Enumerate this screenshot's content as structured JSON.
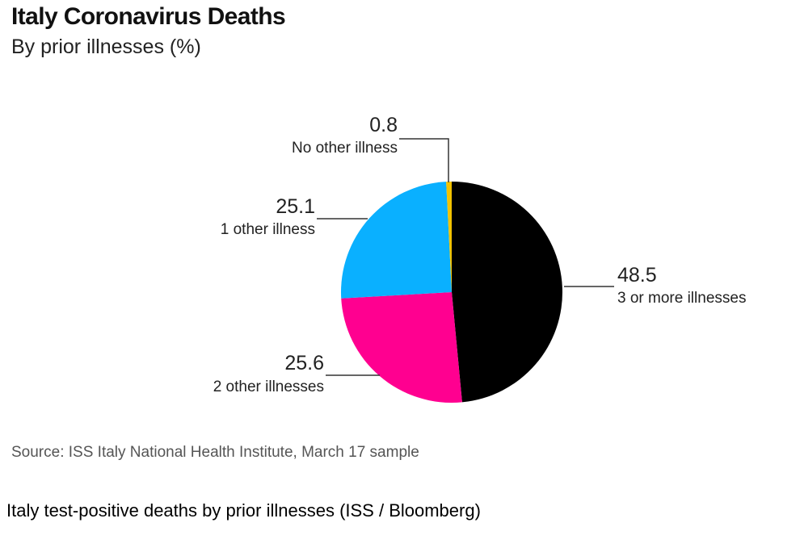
{
  "header": {
    "title": "Italy Coronavirus Deaths",
    "subtitle": "By prior illnesses (%)"
  },
  "footer": {
    "source": "Source: ISS Italy National Health Institute, March 17 sample"
  },
  "caption": "Italy test-positive deaths by prior illnesses (ISS / Bloomberg)",
  "chart_data": {
    "type": "pie",
    "title": "Italy Coronavirus Deaths",
    "subtitle": "By prior illnesses (%)",
    "start": "12 o'clock",
    "direction": "clockwise",
    "slices": [
      {
        "label": "3 or more illnesses",
        "value": 48.5,
        "display": "48.5",
        "color": "#000000"
      },
      {
        "label": "2 other illnesses",
        "value": 25.6,
        "display": "25.6",
        "color": "#ff0090"
      },
      {
        "label": "1 other illness",
        "value": 25.1,
        "display": "25.1",
        "color": "#0ab0ff"
      },
      {
        "label": "No other illness",
        "value": 0.8,
        "display": "0.8",
        "color": "#f2c200"
      }
    ]
  }
}
